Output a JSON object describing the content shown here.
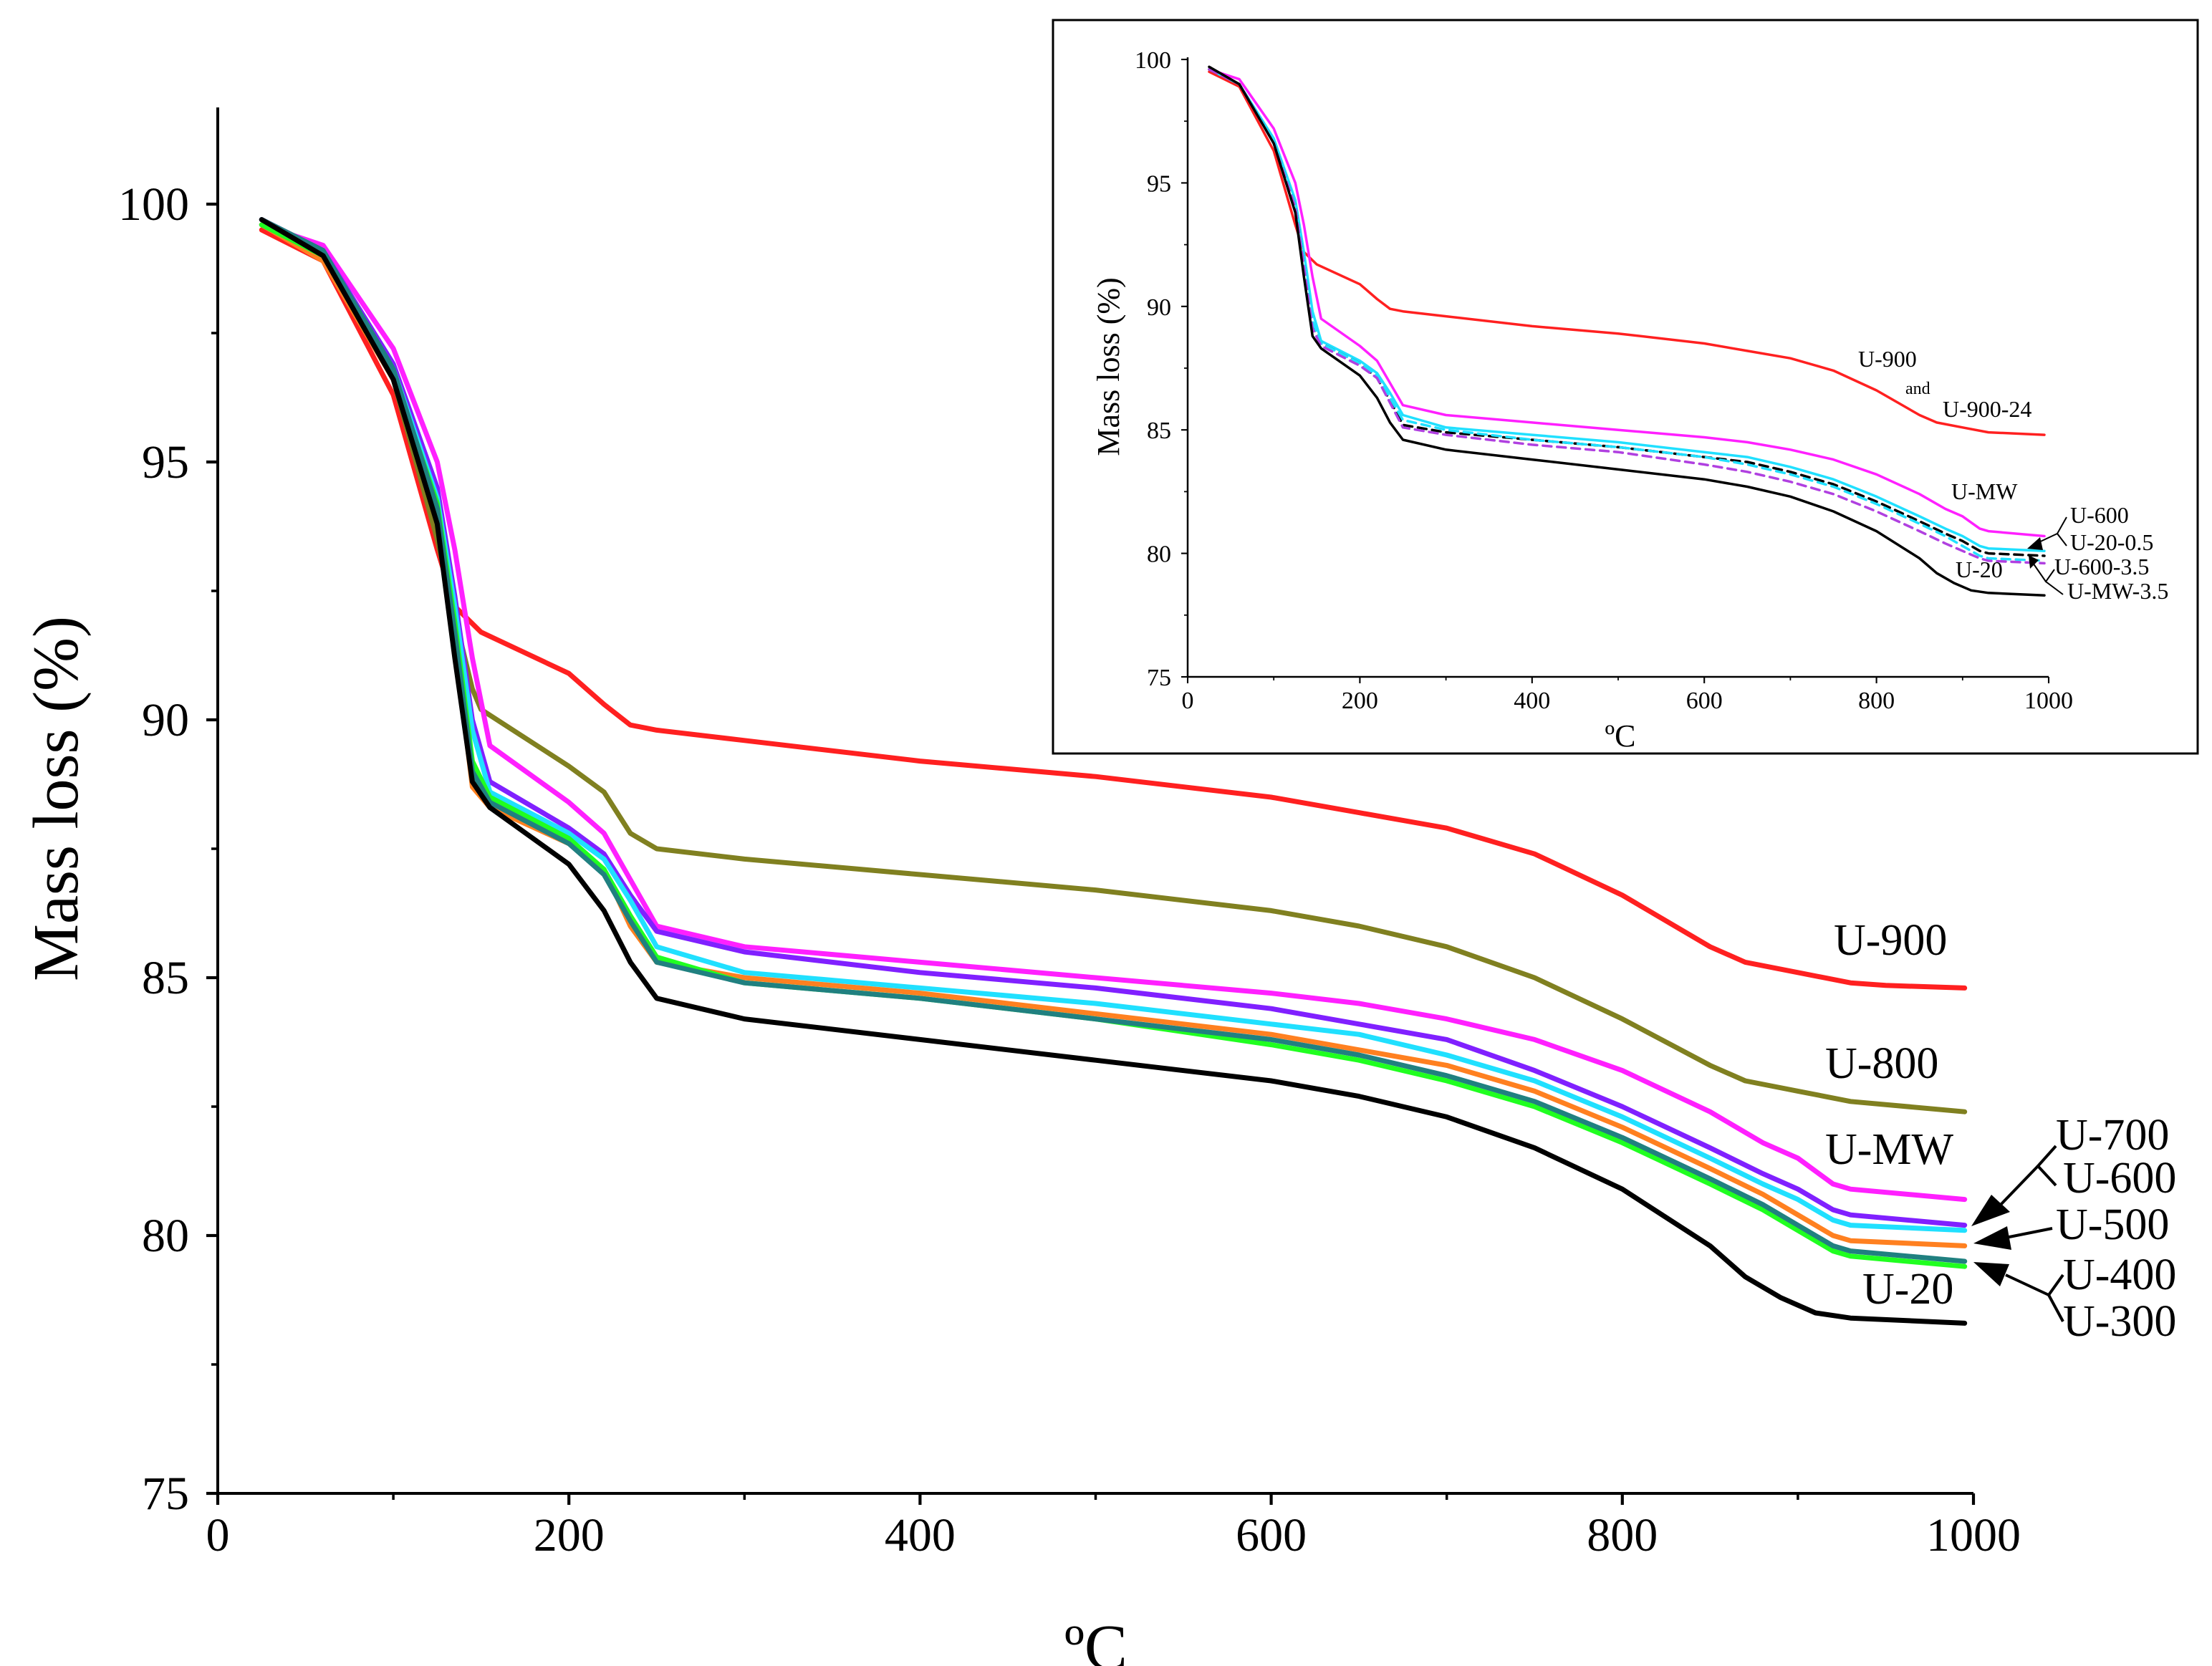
{
  "chart_data": [
    {
      "type": "line",
      "name": "main",
      "xlabel": "ºC",
      "ylabel": "Mass loss (%)",
      "xlim": [
        0,
        1000
      ],
      "ylim": [
        75,
        100
      ],
      "xticks": [
        0,
        200,
        400,
        600,
        800,
        1000
      ],
      "yticks": [
        75,
        80,
        85,
        90,
        95,
        100
      ],
      "labels": {
        "u900": "U-900",
        "u800": "U-800",
        "umw": "U-MW",
        "u700": "U-700",
        "u600": "U-600",
        "u500": "U-500",
        "u400": "U-400",
        "u300": "U-300",
        "u20": "U-20"
      },
      "series": [
        {
          "name": "U-900",
          "color": "#ff2020",
          "x": [
            25,
            60,
            100,
            125,
            135,
            150,
            200,
            220,
            235,
            250,
            300,
            400,
            500,
            600,
            650,
            700,
            750,
            800,
            850,
            870,
            900,
            930,
            950,
            995
          ],
          "y": [
            99.5,
            98.9,
            96.3,
            93.3,
            92.2,
            91.7,
            90.9,
            90.3,
            89.9,
            89.8,
            89.6,
            89.2,
            88.9,
            88.5,
            88.2,
            87.9,
            87.4,
            86.6,
            85.6,
            85.3,
            85.1,
            84.9,
            84.85,
            84.8
          ]
        },
        {
          "name": "U-800",
          "color": "#808020",
          "x": [
            25,
            60,
            100,
            125,
            135,
            145,
            150,
            200,
            220,
            235,
            250,
            300,
            400,
            500,
            600,
            650,
            700,
            750,
            800,
            850,
            870,
            900,
            930,
            995
          ],
          "y": [
            99.7,
            99.1,
            96.6,
            93.5,
            92.0,
            90.6,
            90.2,
            89.1,
            88.6,
            87.8,
            87.5,
            87.3,
            87.0,
            86.7,
            86.3,
            86.0,
            85.6,
            85.0,
            84.2,
            83.3,
            83.0,
            82.8,
            82.6,
            82.4
          ]
        },
        {
          "name": "U-MW",
          "color": "#ff20ff",
          "x": [
            25,
            60,
            100,
            125,
            135,
            145,
            155,
            200,
            220,
            235,
            250,
            300,
            400,
            500,
            600,
            650,
            700,
            750,
            800,
            850,
            880,
            900,
            920,
            930,
            995
          ],
          "y": [
            99.6,
            99.2,
            97.2,
            95.0,
            93.3,
            91.2,
            89.5,
            88.4,
            87.8,
            86.9,
            86.0,
            85.6,
            85.3,
            85.0,
            84.7,
            84.5,
            84.2,
            83.8,
            83.2,
            82.4,
            81.8,
            81.5,
            81.0,
            80.9,
            80.7
          ]
        },
        {
          "name": "U-700",
          "color": "#8020ff",
          "x": [
            25,
            60,
            100,
            125,
            135,
            145,
            155,
            200,
            220,
            235,
            250,
            300,
            400,
            500,
            600,
            650,
            700,
            750,
            800,
            850,
            880,
            900,
            920,
            930,
            995
          ],
          "y": [
            99.7,
            99.1,
            96.9,
            94.5,
            92.4,
            90.0,
            88.8,
            87.9,
            87.4,
            86.6,
            85.9,
            85.5,
            85.1,
            84.8,
            84.4,
            84.1,
            83.8,
            83.2,
            82.5,
            81.7,
            81.2,
            80.9,
            80.5,
            80.4,
            80.2
          ]
        },
        {
          "name": "U-600",
          "color": "#20e0ff",
          "x": [
            25,
            60,
            100,
            125,
            135,
            145,
            155,
            200,
            220,
            235,
            250,
            300,
            400,
            500,
            600,
            650,
            700,
            750,
            800,
            850,
            880,
            900,
            920,
            930,
            995
          ],
          "y": [
            99.6,
            99.0,
            96.8,
            94.3,
            92.2,
            89.8,
            88.6,
            87.8,
            87.3,
            86.5,
            85.6,
            85.1,
            84.8,
            84.5,
            84.1,
            83.9,
            83.5,
            83.0,
            82.3,
            81.5,
            81.0,
            80.7,
            80.3,
            80.2,
            80.1
          ]
        },
        {
          "name": "U-500",
          "color": "#ff8020",
          "x": [
            25,
            60,
            100,
            125,
            135,
            145,
            155,
            200,
            220,
            235,
            250,
            300,
            400,
            500,
            600,
            650,
            700,
            750,
            800,
            850,
            880,
            900,
            920,
            930,
            995
          ],
          "y": [
            99.6,
            98.9,
            96.6,
            94.0,
            91.5,
            88.7,
            88.3,
            87.6,
            87.1,
            86.0,
            85.3,
            85.0,
            84.7,
            84.3,
            83.9,
            83.6,
            83.3,
            82.8,
            82.1,
            81.3,
            80.8,
            80.4,
            80.0,
            79.9,
            79.8
          ]
        },
        {
          "name": "U-400",
          "color": "#20ff20",
          "x": [
            25,
            60,
            100,
            125,
            135,
            145,
            155,
            200,
            220,
            235,
            250,
            300,
            400,
            500,
            600,
            650,
            700,
            750,
            800,
            850,
            880,
            900,
            920,
            930,
            995
          ],
          "y": [
            99.6,
            99.0,
            96.7,
            94.2,
            91.9,
            89.2,
            88.5,
            87.7,
            87.1,
            86.2,
            85.4,
            84.9,
            84.6,
            84.2,
            83.7,
            83.4,
            83.0,
            82.5,
            81.8,
            81.0,
            80.5,
            80.1,
            79.7,
            79.6,
            79.4
          ]
        },
        {
          "name": "U-300",
          "color": "#208080",
          "x": [
            25,
            60,
            100,
            125,
            135,
            145,
            155,
            200,
            220,
            235,
            250,
            300,
            400,
            500,
            600,
            650,
            700,
            750,
            800,
            850,
            880,
            900,
            920,
            930,
            995
          ],
          "y": [
            99.7,
            99.1,
            96.8,
            94.1,
            91.7,
            89.0,
            88.4,
            87.6,
            87.0,
            86.1,
            85.3,
            84.9,
            84.6,
            84.2,
            83.8,
            83.5,
            83.1,
            82.6,
            81.9,
            81.1,
            80.6,
            80.2,
            79.8,
            79.7,
            79.5
          ]
        },
        {
          "name": "U-20",
          "color": "#000000",
          "x": [
            25,
            60,
            100,
            125,
            135,
            145,
            155,
            200,
            220,
            235,
            250,
            300,
            400,
            500,
            600,
            650,
            700,
            750,
            800,
            850,
            870,
            890,
            910,
            930,
            995
          ],
          "y": [
            99.7,
            99.0,
            96.6,
            93.8,
            91.2,
            88.8,
            88.3,
            87.2,
            86.3,
            85.3,
            84.6,
            84.2,
            83.8,
            83.4,
            83.0,
            82.7,
            82.3,
            81.7,
            80.9,
            79.8,
            79.2,
            78.8,
            78.5,
            78.4,
            78.3
          ]
        }
      ]
    },
    {
      "type": "line",
      "name": "inset",
      "xlabel": "ºC",
      "ylabel": "Mass loss (%)",
      "xlim": [
        0,
        1000
      ],
      "ylim": [
        75,
        100
      ],
      "xticks": [
        0,
        200,
        400,
        600,
        800,
        1000
      ],
      "yticks": [
        75,
        80,
        85,
        90,
        95,
        100
      ],
      "labels": {
        "u900": "U-900",
        "and": "and",
        "u90024": "U-900-24",
        "umw": "U-MW",
        "u600": "U-600",
        "u2005": "U-20-0.5",
        "u60035": "U-600-3.5",
        "u20": "U-20",
        "umw35": "U-MW-3.5"
      },
      "series": [
        {
          "name": "U-900",
          "color": "#ff2020",
          "dashed": false,
          "x": [
            25,
            60,
            100,
            125,
            135,
            150,
            200,
            220,
            235,
            250,
            300,
            400,
            500,
            600,
            650,
            700,
            750,
            800,
            850,
            870,
            900,
            930,
            995
          ],
          "y": [
            99.5,
            98.9,
            96.3,
            93.3,
            92.2,
            91.7,
            90.9,
            90.3,
            89.9,
            89.8,
            89.6,
            89.2,
            88.9,
            88.5,
            88.2,
            87.9,
            87.4,
            86.6,
            85.6,
            85.3,
            85.1,
            84.9,
            84.8
          ]
        },
        {
          "name": "U-MW",
          "color": "#ff20ff",
          "dashed": false,
          "x": [
            25,
            60,
            100,
            125,
            135,
            145,
            155,
            200,
            220,
            235,
            250,
            300,
            400,
            500,
            600,
            650,
            700,
            750,
            800,
            850,
            880,
            900,
            920,
            930,
            995
          ],
          "y": [
            99.6,
            99.2,
            97.2,
            95.0,
            93.3,
            91.2,
            89.5,
            88.4,
            87.8,
            86.9,
            86.0,
            85.6,
            85.3,
            85.0,
            84.7,
            84.5,
            84.2,
            83.8,
            83.2,
            82.4,
            81.8,
            81.5,
            81.0,
            80.9,
            80.7
          ]
        },
        {
          "name": "U-600",
          "color": "#20e0ff",
          "dashed": false,
          "x": [
            25,
            60,
            100,
            125,
            135,
            145,
            155,
            200,
            220,
            235,
            250,
            300,
            400,
            500,
            600,
            650,
            700,
            750,
            800,
            850,
            880,
            900,
            920,
            930,
            995
          ],
          "y": [
            99.6,
            99.0,
            96.8,
            94.3,
            92.2,
            89.8,
            88.6,
            87.8,
            87.3,
            86.5,
            85.6,
            85.1,
            84.8,
            84.5,
            84.1,
            83.9,
            83.5,
            83.0,
            82.3,
            81.5,
            81.0,
            80.7,
            80.3,
            80.2,
            80.1
          ]
        },
        {
          "name": "U-20-0.5",
          "color": "#000000",
          "dashed": true,
          "x": [
            25,
            60,
            100,
            125,
            135,
            145,
            155,
            200,
            220,
            235,
            250,
            300,
            400,
            500,
            600,
            650,
            700,
            750,
            800,
            850,
            880,
            900,
            920,
            930,
            995
          ],
          "y": [
            99.6,
            99.0,
            96.7,
            94.1,
            91.8,
            89.3,
            88.5,
            87.7,
            87.1,
            86.2,
            85.2,
            84.9,
            84.6,
            84.3,
            83.9,
            83.7,
            83.3,
            82.8,
            82.1,
            81.3,
            80.8,
            80.5,
            80.1,
            80.0,
            79.9
          ]
        },
        {
          "name": "U-600-3.5",
          "color": "#20e0ff",
          "dashed": true,
          "x": [
            25,
            60,
            100,
            125,
            135,
            145,
            155,
            200,
            220,
            235,
            250,
            300,
            400,
            500,
            600,
            650,
            700,
            750,
            800,
            850,
            880,
            900,
            920,
            930,
            995
          ],
          "y": [
            99.6,
            99.0,
            96.7,
            94.1,
            91.8,
            89.4,
            88.5,
            87.7,
            87.2,
            86.3,
            85.4,
            85.0,
            84.6,
            84.3,
            83.9,
            83.6,
            83.2,
            82.7,
            82.0,
            81.2,
            80.7,
            80.3,
            79.9,
            79.8,
            79.7
          ]
        },
        {
          "name": "U-MW-3.5",
          "color": "#b040e0",
          "dashed": true,
          "x": [
            25,
            60,
            100,
            125,
            135,
            145,
            155,
            200,
            220,
            235,
            250,
            300,
            400,
            500,
            600,
            650,
            700,
            750,
            800,
            850,
            880,
            900,
            920,
            930,
            995
          ],
          "y": [
            99.6,
            99.0,
            96.6,
            94.0,
            91.6,
            89.1,
            88.4,
            87.6,
            87.1,
            86.1,
            85.1,
            84.8,
            84.4,
            84.1,
            83.6,
            83.3,
            82.9,
            82.4,
            81.7,
            80.9,
            80.4,
            80.1,
            79.8,
            79.7,
            79.6
          ]
        },
        {
          "name": "U-20",
          "color": "#000000",
          "dashed": false,
          "x": [
            25,
            60,
            100,
            125,
            135,
            145,
            155,
            200,
            220,
            235,
            250,
            300,
            400,
            500,
            600,
            650,
            700,
            750,
            800,
            850,
            870,
            890,
            910,
            930,
            995
          ],
          "y": [
            99.7,
            99.0,
            96.6,
            93.8,
            91.2,
            88.8,
            88.3,
            87.2,
            86.3,
            85.3,
            84.6,
            84.2,
            83.8,
            83.4,
            83.0,
            82.7,
            82.3,
            81.7,
            80.9,
            79.8,
            79.2,
            78.8,
            78.5,
            78.4,
            78.3
          ]
        }
      ]
    }
  ]
}
